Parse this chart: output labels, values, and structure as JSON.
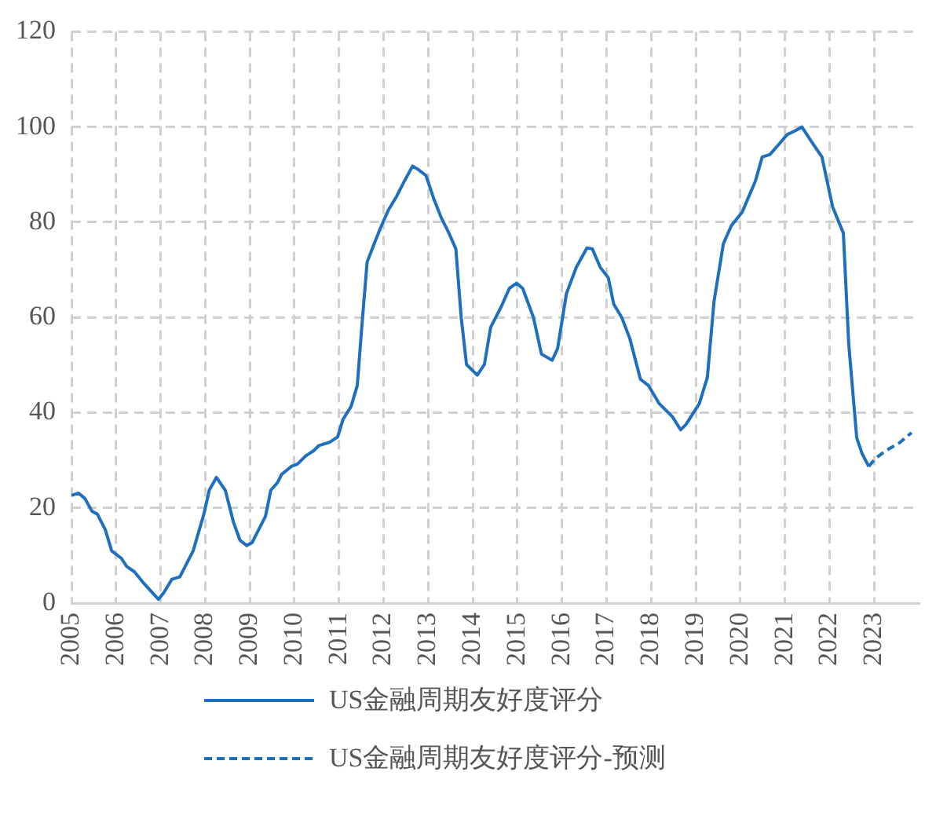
{
  "chart_data": {
    "type": "line",
    "xlim": [
      2005,
      2024
    ],
    "xticks": [
      2005,
      2006,
      2007,
      2008,
      2009,
      2010,
      2011,
      2012,
      2013,
      2014,
      2015,
      2016,
      2017,
      2018,
      2019,
      2020,
      2021,
      2022,
      2023
    ],
    "ylim": [
      0,
      120
    ],
    "yticks": [
      0,
      20,
      40,
      60,
      80,
      100,
      120
    ],
    "grid": true,
    "legend": "bottom",
    "marker": "none",
    "series": [
      {
        "name": "US金融周期友好度评分",
        "color": "#1f6fbf",
        "line_style": "solid",
        "x": [
          2005.0,
          2005.16,
          2005.3,
          2005.46,
          2005.58,
          2005.7,
          2005.76,
          2005.9,
          2006.12,
          2006.24,
          2006.41,
          2006.6,
          2006.95,
          2007.07,
          2007.25,
          2007.43,
          2007.73,
          2007.97,
          2008.09,
          2008.25,
          2008.45,
          2008.63,
          2008.78,
          2008.93,
          2009.05,
          2009.17,
          2009.35,
          2009.47,
          2009.62,
          2009.71,
          2009.93,
          2010.07,
          2010.25,
          2010.43,
          2010.55,
          2010.79,
          2010.97,
          2011.09,
          2011.27,
          2011.41,
          2011.51,
          2011.63,
          2011.81,
          2011.93,
          2012.11,
          2012.29,
          2012.47,
          2012.65,
          2012.77,
          2012.95,
          2013.13,
          2013.29,
          2013.45,
          2013.62,
          2013.74,
          2013.86,
          2014.1,
          2014.26,
          2014.4,
          2014.64,
          2014.82,
          2014.98,
          2015.12,
          2015.36,
          2015.54,
          2015.78,
          2015.9,
          2016.1,
          2016.32,
          2016.56,
          2016.68,
          2016.86,
          2017.04,
          2017.16,
          2017.34,
          2017.52,
          2017.76,
          2017.94,
          2018.18,
          2018.48,
          2018.66,
          2018.78,
          2019.08,
          2019.26,
          2019.41,
          2019.62,
          2019.8,
          2020.04,
          2020.34,
          2020.49,
          2020.66,
          2020.85,
          2021.05,
          2021.23,
          2021.38,
          2021.59,
          2021.83,
          2022.07,
          2022.31,
          2022.43,
          2022.61,
          2022.73,
          2022.88
        ],
        "values": [
          22.6,
          23.1,
          22,
          19.3,
          18.7,
          16.5,
          15.4,
          11,
          9.4,
          7.7,
          6.6,
          4.4,
          0.8,
          2.2,
          5,
          5.5,
          11,
          18.7,
          23.7,
          26.4,
          23.7,
          17.1,
          13.2,
          12.1,
          12.7,
          14.9,
          18.2,
          23.7,
          25.3,
          27,
          28.7,
          29.2,
          30.9,
          32,
          33.1,
          33.8,
          34.9,
          38.6,
          41.3,
          45.7,
          57.9,
          71.6,
          76,
          78.8,
          82.6,
          85.4,
          88.7,
          91.8,
          91.1,
          89.8,
          84.8,
          81,
          78,
          74.4,
          60,
          50.1,
          47.9,
          50.1,
          57.9,
          62.3,
          66.1,
          67.2,
          66.1,
          60,
          52.3,
          51,
          53.4,
          65,
          70.5,
          74.6,
          74.4,
          70.5,
          68.3,
          62.8,
          60,
          55.6,
          47,
          45.7,
          41.9,
          39.1,
          36.4,
          37.5,
          41.9,
          47.4,
          63.4,
          75.5,
          79.3,
          82.1,
          88.7,
          93.7,
          94.2,
          96.2,
          98.4,
          99.2,
          100,
          97,
          93.7,
          83.2,
          77.7,
          54.5,
          34.7,
          31.4,
          28.7
        ]
      },
      {
        "name": "US金融周期友好度评分-预测",
        "color": "#1f6fbf",
        "line_style": "dashed",
        "x": [
          2022.88,
          2023.02,
          2023.26,
          2023.56,
          2023.84
        ],
        "values": [
          28.7,
          30.3,
          32,
          33.6,
          35.8
        ]
      }
    ]
  }
}
